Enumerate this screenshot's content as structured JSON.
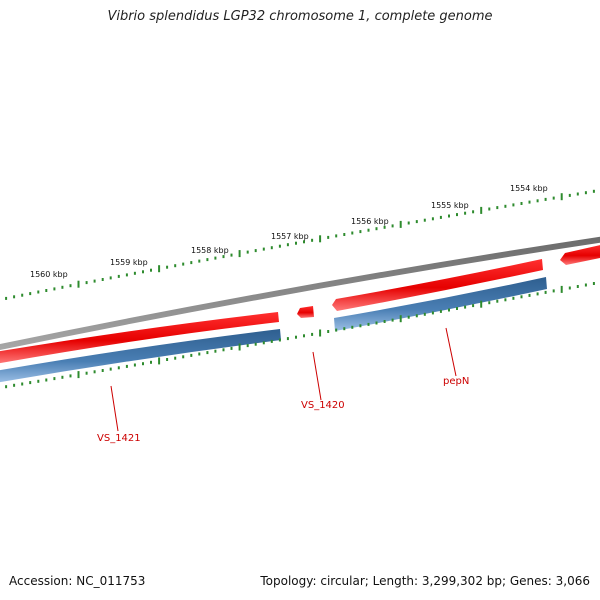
{
  "title": "Vibrio splendidus LGP32 chromosome 1, complete genome",
  "footer": {
    "accession": "Accession: NC_011753",
    "summary": "Topology: circular; Length: 3,299,302 bp; Genes: 3,066"
  },
  "ruler": {
    "labels": [
      "1560 kbp",
      "1559 kbp",
      "1558 kbp",
      "1557 kbp",
      "1556 kbp",
      "1555 kbp",
      "1554 kbp"
    ]
  },
  "genes": [
    {
      "name": "VS_1421"
    },
    {
      "name": "VS_1420"
    },
    {
      "name": "pepN"
    }
  ],
  "colors": {
    "backbone": "#7f7f7f",
    "cds": "#ff0000",
    "gene": "#4a7fb4",
    "tick": "#2e8b2e",
    "label": "#cc0000"
  }
}
